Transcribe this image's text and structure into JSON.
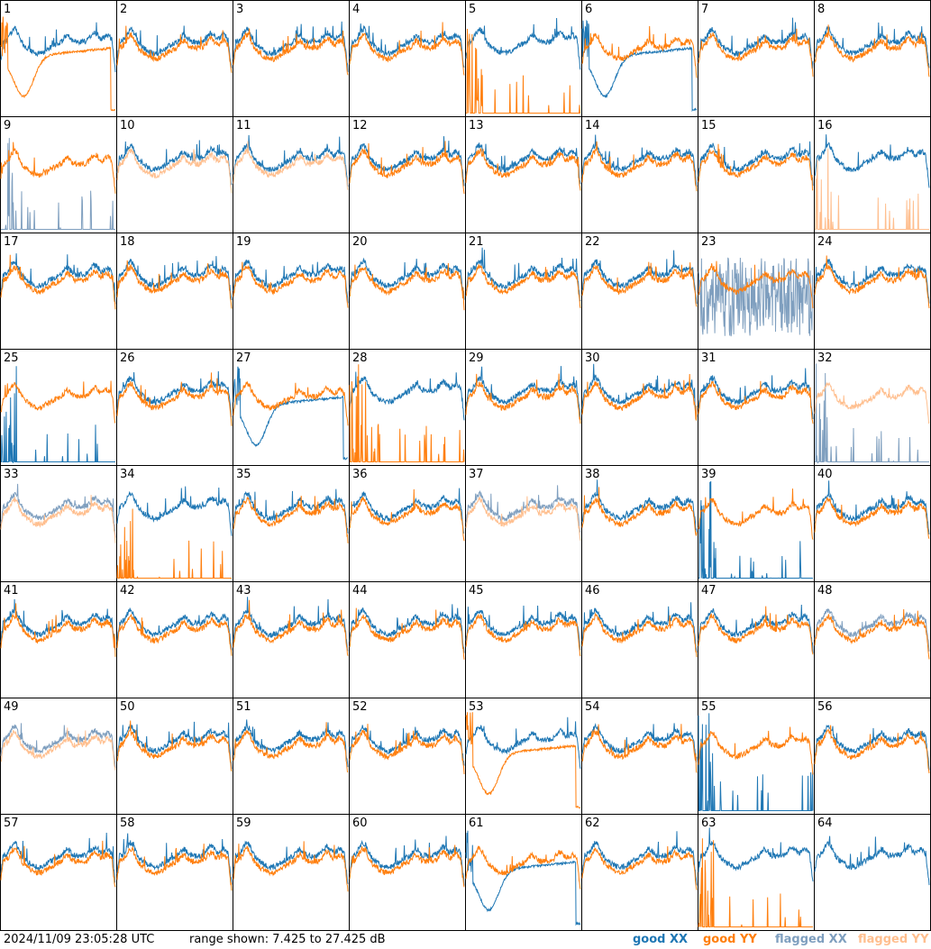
{
  "chart_data": {
    "type": "line",
    "title": "",
    "xlabel": "",
    "ylabel": "",
    "ylim": [
      7.425,
      27.425
    ],
    "units": "dB",
    "grid": "8x8 panels",
    "legend_placement": "bottom-right",
    "series_styles": [
      {
        "name": "good XX",
        "color": "#1f77b4"
      },
      {
        "name": "good YY",
        "color": "#ff7f0e"
      },
      {
        "name": "flagged XX",
        "color": "#7f9fbf"
      },
      {
        "name": "flagged YY",
        "color": "#ffbf8f"
      }
    ],
    "panels": [
      {
        "id": "1",
        "xx": "good",
        "yy": "good",
        "yy_shape": "dip"
      },
      {
        "id": "2",
        "xx": "good",
        "yy": "good"
      },
      {
        "id": "3",
        "xx": "good",
        "yy": "good"
      },
      {
        "id": "4",
        "xx": "good",
        "yy": "good"
      },
      {
        "id": "5",
        "xx": "good",
        "yy": "good",
        "yy_shape": "spikes"
      },
      {
        "id": "6",
        "xx": "good",
        "yy": "good",
        "xx_shape": "dip"
      },
      {
        "id": "7",
        "xx": "good",
        "yy": "good"
      },
      {
        "id": "8",
        "xx": "good",
        "yy": "good"
      },
      {
        "id": "9",
        "xx": "flagged",
        "yy": "good",
        "xx_shape": "spikes"
      },
      {
        "id": "10",
        "xx": "good",
        "yy": "flagged"
      },
      {
        "id": "11",
        "xx": "good",
        "yy": "flagged"
      },
      {
        "id": "12",
        "xx": "good",
        "yy": "good"
      },
      {
        "id": "13",
        "xx": "good",
        "yy": "good"
      },
      {
        "id": "14",
        "xx": "good",
        "yy": "good"
      },
      {
        "id": "15",
        "xx": "good",
        "yy": "good"
      },
      {
        "id": "16",
        "xx": "good",
        "yy": "flagged",
        "yy_shape": "spikes"
      },
      {
        "id": "17",
        "xx": "good",
        "yy": "good"
      },
      {
        "id": "18",
        "xx": "good",
        "yy": "good"
      },
      {
        "id": "19",
        "xx": "good",
        "yy": "good"
      },
      {
        "id": "20",
        "xx": "good",
        "yy": "good"
      },
      {
        "id": "21",
        "xx": "good",
        "yy": "good"
      },
      {
        "id": "22",
        "xx": "good",
        "yy": "good"
      },
      {
        "id": "23",
        "xx": "flagged",
        "yy": "good",
        "xx_shape": "noise"
      },
      {
        "id": "24",
        "xx": "good",
        "yy": "good"
      },
      {
        "id": "25",
        "xx": "good",
        "yy": "good",
        "xx_shape": "spikes"
      },
      {
        "id": "26",
        "xx": "good",
        "yy": "good"
      },
      {
        "id": "27",
        "xx": "good",
        "yy": "good",
        "xx_shape": "dip"
      },
      {
        "id": "28",
        "xx": "good",
        "yy": "good",
        "yy_shape": "spikes"
      },
      {
        "id": "29",
        "xx": "good",
        "yy": "good"
      },
      {
        "id": "30",
        "xx": "good",
        "yy": "good"
      },
      {
        "id": "31",
        "xx": "good",
        "yy": "good"
      },
      {
        "id": "32",
        "xx": "flagged",
        "yy": "flagged",
        "xx_shape": "spikes"
      },
      {
        "id": "33",
        "xx": "flagged",
        "yy": "flagged"
      },
      {
        "id": "34",
        "xx": "good",
        "yy": "good",
        "yy_shape": "spikes"
      },
      {
        "id": "35",
        "xx": "good",
        "yy": "good"
      },
      {
        "id": "36",
        "xx": "good",
        "yy": "good"
      },
      {
        "id": "37",
        "xx": "flagged",
        "yy": "flagged"
      },
      {
        "id": "38",
        "xx": "good",
        "yy": "good"
      },
      {
        "id": "39",
        "xx": "good",
        "yy": "good",
        "xx_shape": "spikes"
      },
      {
        "id": "40",
        "xx": "good",
        "yy": "good"
      },
      {
        "id": "41",
        "xx": "good",
        "yy": "good"
      },
      {
        "id": "42",
        "xx": "good",
        "yy": "good"
      },
      {
        "id": "43",
        "xx": "good",
        "yy": "good"
      },
      {
        "id": "44",
        "xx": "good",
        "yy": "good"
      },
      {
        "id": "45",
        "xx": "good",
        "yy": "good"
      },
      {
        "id": "46",
        "xx": "good",
        "yy": "good"
      },
      {
        "id": "47",
        "xx": "good",
        "yy": "good"
      },
      {
        "id": "48",
        "xx": "flagged",
        "yy": "good"
      },
      {
        "id": "49",
        "xx": "flagged",
        "yy": "flagged"
      },
      {
        "id": "50",
        "xx": "good",
        "yy": "good"
      },
      {
        "id": "51",
        "xx": "good",
        "yy": "good"
      },
      {
        "id": "52",
        "xx": "good",
        "yy": "good"
      },
      {
        "id": "53",
        "xx": "good",
        "yy": "good",
        "yy_shape": "dip"
      },
      {
        "id": "54",
        "xx": "good",
        "yy": "good"
      },
      {
        "id": "55",
        "xx": "good",
        "yy": "good",
        "xx_shape": "spikes"
      },
      {
        "id": "56",
        "xx": "good",
        "yy": "good"
      },
      {
        "id": "57",
        "xx": "good",
        "yy": "good"
      },
      {
        "id": "58",
        "xx": "good",
        "yy": "good"
      },
      {
        "id": "59",
        "xx": "good",
        "yy": "good"
      },
      {
        "id": "60",
        "xx": "good",
        "yy": "good"
      },
      {
        "id": "61",
        "xx": "good",
        "yy": "good",
        "xx_shape": "dip"
      },
      {
        "id": "62",
        "xx": "good",
        "yy": "good"
      },
      {
        "id": "63",
        "xx": "good",
        "yy": "good",
        "yy_shape": "spikes"
      },
      {
        "id": "64",
        "xx": "good",
        "yy": "none"
      }
    ]
  },
  "footer": {
    "timestamp": "2024/11/09 23:05:28 UTC",
    "range_text": "range shown: 7.425 to 27.425 dB"
  },
  "legend": [
    {
      "label": "good XX",
      "color": "#1f77b4"
    },
    {
      "label": "good YY",
      "color": "#ff7f0e"
    },
    {
      "label": "flagged XX",
      "color": "#7f9fbf"
    },
    {
      "label": "flagged YY",
      "color": "#ffbf8f"
    }
  ]
}
